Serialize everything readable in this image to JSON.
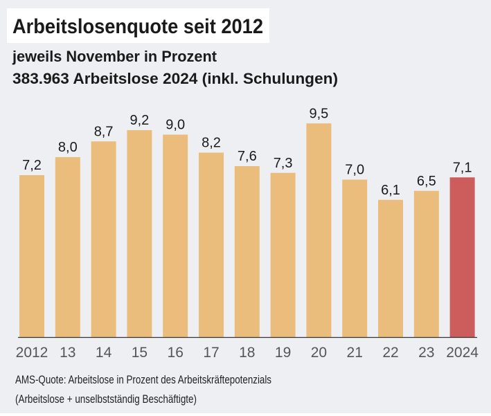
{
  "chart_data": {
    "type": "bar",
    "title": "Arbeitslosenquote seit 2012",
    "subtitle": [
      "jeweils November in Prozent",
      "383.963 Arbeitslose 2024 (inkl. Schulungen)"
    ],
    "categories": [
      "2012",
      "13",
      "14",
      "15",
      "16",
      "17",
      "18",
      "19",
      "20",
      "21",
      "22",
      "23",
      "2024"
    ],
    "values": [
      7.2,
      8.0,
      8.7,
      9.2,
      9.0,
      8.2,
      7.6,
      7.3,
      9.5,
      7.0,
      6.1,
      6.5,
      7.1
    ],
    "value_labels": [
      "7,2",
      "8,0",
      "8,7",
      "9,2",
      "9,0",
      "8,2",
      "7,6",
      "7,3",
      "9,5",
      "7,0",
      "6,1",
      "6,5",
      "7,1"
    ],
    "highlight_index": 12,
    "ylim": [
      0,
      10
    ],
    "grid": false,
    "colors": {
      "bar": "#ebbd7d",
      "highlight": "#cd5c5c",
      "background": "#eeeff3",
      "axis": "#333333"
    },
    "notes": [
      "AMS-Quote: Arbeitslose in Prozent des Arbeitskräftepotenzials",
      "(Arbeitslose + unselbstständig Beschäftigte)"
    ]
  }
}
